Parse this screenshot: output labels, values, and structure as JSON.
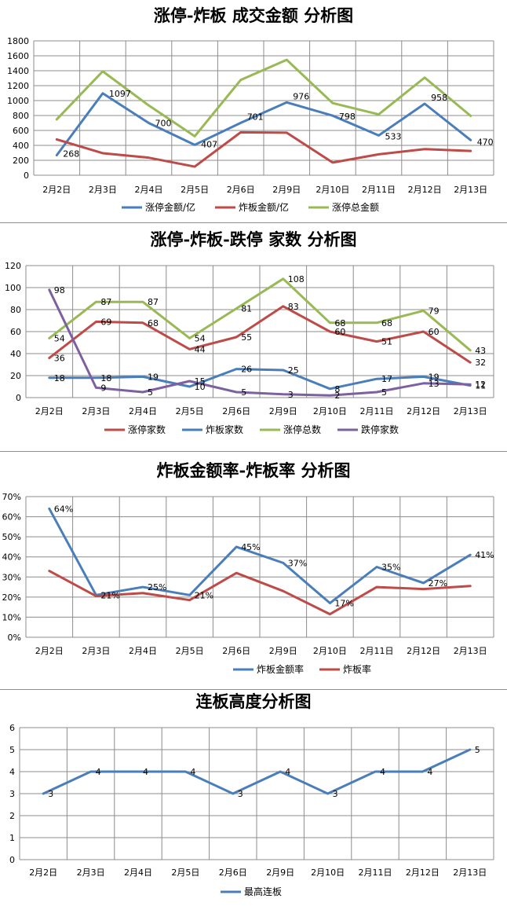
{
  "watermark": "",
  "chart_data": [
    {
      "type": "line",
      "title": "涨停-炸板 成交金额 分析图",
      "categories": [
        "2月2日",
        "2月3日",
        "2月4日",
        "2月5日",
        "2月6日",
        "2月9日",
        "2月10日",
        "2月11日",
        "2月12日",
        "2月13日"
      ],
      "ylim": [
        0,
        1800
      ],
      "yticks": [
        0,
        200,
        400,
        600,
        800,
        1000,
        1200,
        1400,
        1600,
        1800
      ],
      "ytick_labels": [
        "0",
        "200",
        "400",
        "600",
        "800",
        "1000",
        "1200",
        "1400",
        "1600",
        "1800"
      ],
      "grid": true,
      "legend_position": "bottom",
      "series": [
        {
          "name": "涨停金额/亿",
          "color": "#4a7ebb",
          "values": [
            268,
            1097,
            700,
            407,
            701,
            976,
            798,
            533,
            958,
            470
          ],
          "labels": [
            "268",
            "1097",
            "700",
            "407",
            "701",
            "976",
            "798",
            "533",
            "958",
            "470"
          ]
        },
        {
          "name": "炸板金额/亿",
          "color": "#be4b48",
          "values": [
            480,
            295,
            235,
            115,
            575,
            570,
            170,
            280,
            350,
            325
          ],
          "labels": []
        },
        {
          "name": "涨停总金额",
          "color": "#98b954",
          "values": [
            748,
            1392,
            935,
            522,
            1276,
            1546,
            966,
            815,
            1308,
            795
          ],
          "labels": []
        }
      ]
    },
    {
      "type": "line",
      "title": "涨停-炸板-跌停 家数 分析图",
      "categories": [
        "2月2日",
        "2月3日",
        "2月4日",
        "2月5日",
        "2月6日",
        "2月9日",
        "2月10日",
        "2月11日",
        "2月12日",
        "2月13日"
      ],
      "ylim": [
        0,
        120
      ],
      "yticks": [
        0,
        20,
        40,
        60,
        80,
        100,
        120
      ],
      "ytick_labels": [
        "0",
        "20",
        "40",
        "60",
        "80",
        "100",
        "120"
      ],
      "grid": true,
      "legend_position": "bottom",
      "series": [
        {
          "name": "涨停家数",
          "color": "#be4b48",
          "values": [
            36,
            69,
            68,
            44,
            55,
            83,
            60,
            51,
            60,
            32
          ],
          "labels": [
            "36",
            "69",
            "68",
            "44",
            "55",
            "83",
            "60",
            "51",
            "60",
            "32"
          ]
        },
        {
          "name": "炸板家数",
          "color": "#4a7ebb",
          "values": [
            18,
            18,
            19,
            10,
            26,
            25,
            8,
            17,
            19,
            11
          ],
          "labels": [
            "18",
            "18",
            "19",
            "10",
            "26",
            "25",
            "8",
            "17",
            "19",
            "11"
          ]
        },
        {
          "name": "涨停总数",
          "color": "#98b954",
          "values": [
            54,
            87,
            87,
            54,
            81,
            108,
            68,
            68,
            79,
            43
          ],
          "labels": [
            "54",
            "87",
            "87",
            "54",
            "81",
            "108",
            "68",
            "68",
            "79",
            "43"
          ]
        },
        {
          "name": "跌停家数",
          "color": "#7d60a0",
          "values": [
            98,
            9,
            5,
            15,
            5,
            3,
            2,
            5,
            13,
            12
          ],
          "labels": [
            "98",
            "9",
            "5",
            "15",
            "5",
            "3",
            "2",
            "5",
            "13",
            "12"
          ]
        }
      ]
    },
    {
      "type": "line",
      "title": "炸板金额率-炸板率 分析图",
      "categories": [
        "2月2日",
        "2月3日",
        "2月4日",
        "2月5日",
        "2月6日",
        "2月9日",
        "2月10日",
        "2月11日",
        "2月12日",
        "2月13日"
      ],
      "ylim": [
        0,
        70
      ],
      "yticks": [
        0,
        10,
        20,
        30,
        40,
        50,
        60,
        70
      ],
      "ytick_labels": [
        "0%",
        "10%",
        "20%",
        "30%",
        "40%",
        "50%",
        "60%",
        "70%"
      ],
      "grid": true,
      "legend_position": "bottom",
      "series": [
        {
          "name": "炸板金额率",
          "color": "#4a7ebb",
          "values": [
            64,
            21,
            25,
            21,
            45,
            37,
            17,
            35,
            27,
            41
          ],
          "labels": [
            "64%",
            "21%",
            "25%",
            "21%",
            "45%",
            "37%",
            "17%",
            "35%",
            "27%",
            "41%"
          ]
        },
        {
          "name": "炸板率",
          "color": "#be4b48",
          "values": [
            33,
            20.5,
            22,
            18.5,
            32,
            23,
            11.5,
            25,
            24,
            25.5
          ],
          "labels": []
        }
      ]
    },
    {
      "type": "line",
      "title": "连板高度分析图",
      "categories": [
        "2月2日",
        "2月3日",
        "2月4日",
        "2月5日",
        "2月6日",
        "2月9日",
        "2月10日",
        "2月11日",
        "2月12日",
        "2月13日"
      ],
      "ylim": [
        0,
        6
      ],
      "yticks": [
        0,
        1,
        2,
        3,
        4,
        5,
        6
      ],
      "ytick_labels": [
        "0",
        "1",
        "2",
        "3",
        "4",
        "5",
        "6"
      ],
      "grid": true,
      "legend_position": "bottom",
      "series": [
        {
          "name": "最高连板",
          "color": "#4a7ebb",
          "values": [
            3,
            4,
            4,
            4,
            3,
            4,
            3,
            4,
            4,
            5
          ],
          "labels": [
            "3",
            "4",
            "4",
            "4",
            "3",
            "4",
            "3",
            "4",
            "4",
            "5"
          ]
        }
      ]
    }
  ]
}
